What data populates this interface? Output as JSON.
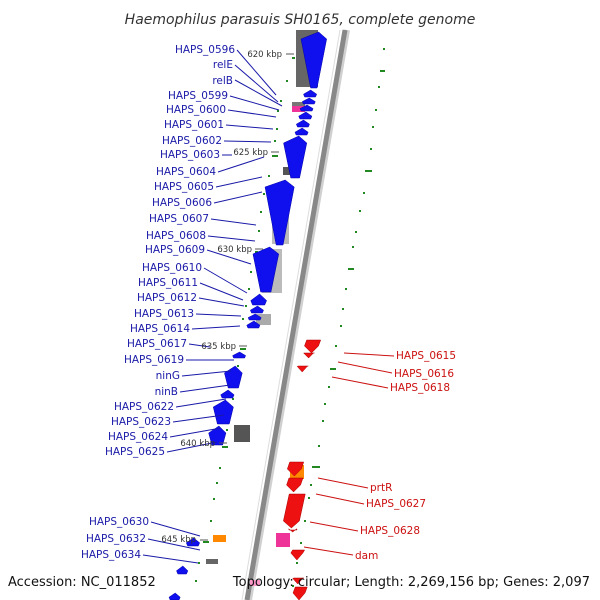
{
  "title": "Haemophilus parasuis SH0165, complete genome",
  "footer": {
    "accession": "Accession: NC_011852",
    "topology": "Topology: circular; Length: 2,269,156 bp; Genes: 2,097"
  },
  "ticks": [
    "620 kbp",
    "625 kbp",
    "630 kbp",
    "635 kbp",
    "640 kbp",
    "645 kbp"
  ],
  "left_labels": [
    "HAPS_0596",
    "relE",
    "relB",
    "HAPS_0599",
    "HAPS_0600",
    "HAPS_0601",
    "HAPS_0602",
    "HAPS_0603",
    "HAPS_0604",
    "HAPS_0605",
    "HAPS_0606",
    "HAPS_0607",
    "HAPS_0608",
    "HAPS_0609",
    "HAPS_0610",
    "HAPS_0611",
    "HAPS_0612",
    "HAPS_0613",
    "HAPS_0614",
    "HAPS_0617",
    "HAPS_0619",
    "ninG",
    "ninB",
    "HAPS_0622",
    "HAPS_0623",
    "HAPS_0624",
    "HAPS_0625",
    "HAPS_0630",
    "HAPS_0632",
    "HAPS_0634"
  ],
  "right_labels": [
    "HAPS_0615",
    "HAPS_0616",
    "HAPS_0618",
    "prtR",
    "HAPS_0627",
    "HAPS_0628",
    "dam"
  ],
  "colors": {
    "forward_gene": "#1010ee",
    "reverse_gene": "#ee1111",
    "label_blue": "#1a1aa8",
    "label_red": "#cc1111",
    "gray_feature": "#777777",
    "pink_feature": "#ee3399",
    "orange_feature": "#ff8800",
    "gc_marks": "#228822",
    "backbone": "#888888"
  }
}
